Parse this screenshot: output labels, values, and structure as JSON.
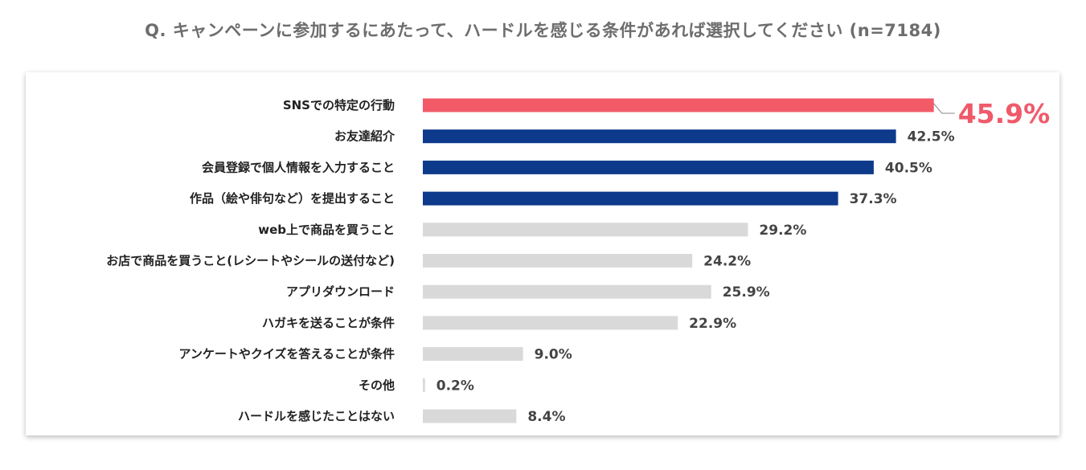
{
  "title": "Q.  キャンペーンに参加するにあたって、ハードルを感じる条件があれば選択してください (n=7184)",
  "chart_data": {
    "type": "bar",
    "orientation": "horizontal",
    "title": "Q.  キャンペーンに参加するにあたって、ハードルを感じる条件があれば選択してください (n=7184)",
    "unit": "%",
    "xlim": [
      0,
      50
    ],
    "categories": [
      "SNSでの特定の行動",
      "お友達紹介",
      "会員登録で個人情報を入力すること",
      "作品（絵や俳句など）を提出すること",
      "web上で商品を買うこと",
      "お店で商品を買うこと(レシートやシールの送付など)",
      "アプリダウンロード",
      "ハガキを送ることが条件",
      "アンケートやクイズを答えることが条件",
      "その他",
      "ハードルを感じたことはない"
    ],
    "values": [
      45.9,
      42.5,
      40.5,
      37.3,
      29.2,
      24.2,
      25.9,
      22.9,
      9.0,
      0.2,
      8.4
    ],
    "value_labels": [
      "45.9%",
      "42.5%",
      "40.5%",
      "37.3%",
      "29.2%",
      "24.2%",
      "25.9%",
      "22.9%",
      "9.0%",
      "0.2%",
      "8.4%"
    ],
    "colors": [
      "#f25a68",
      "#0e3a8c",
      "#0e3a8c",
      "#0e3a8c",
      "#d9d9d9",
      "#d9d9d9",
      "#d9d9d9",
      "#d9d9d9",
      "#d9d9d9",
      "#d9d9d9",
      "#d9d9d9"
    ],
    "highlight_index": 0
  }
}
